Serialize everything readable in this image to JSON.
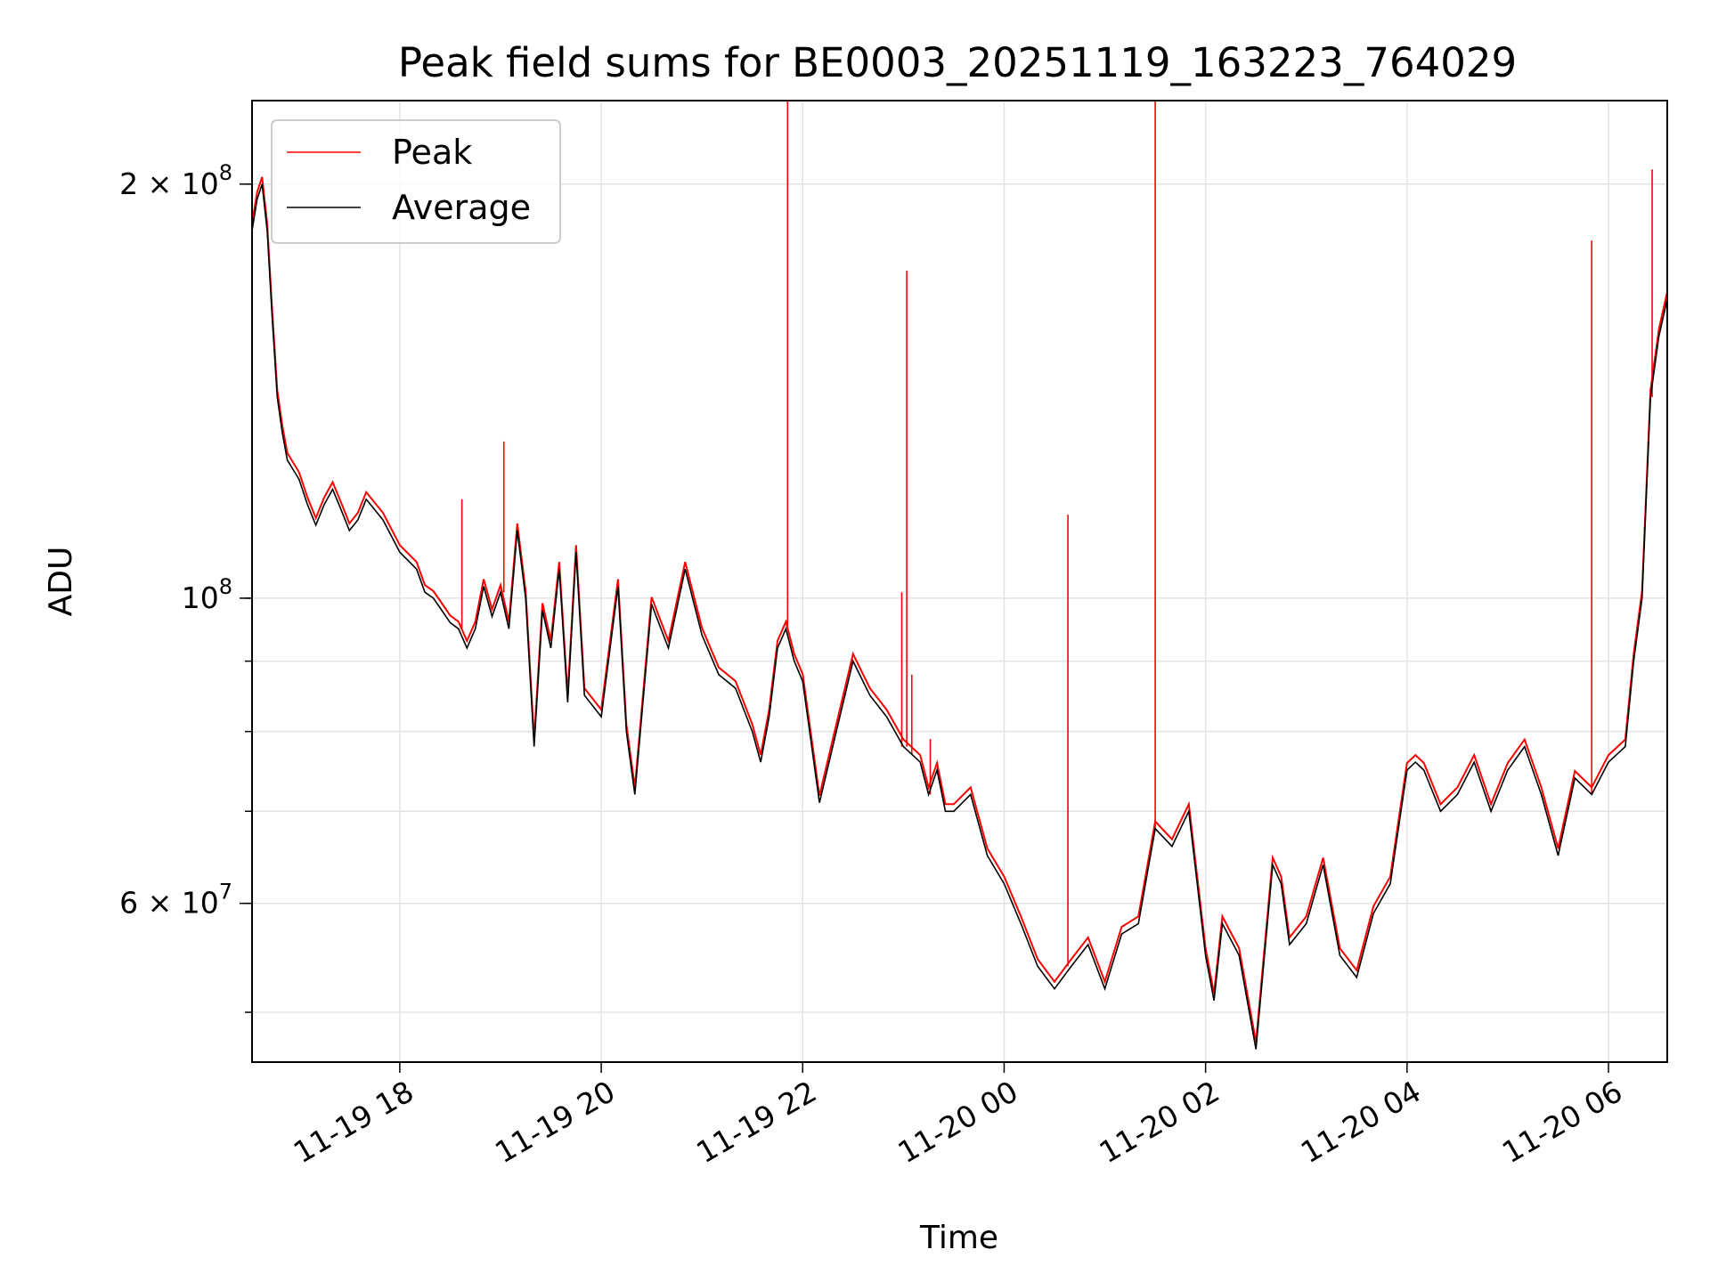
{
  "chart_data": {
    "type": "line",
    "title": "Peak field sums for BE0003_20251119_163223_764029",
    "xlabel": "Time",
    "ylabel": "ADU",
    "yscale": "log",
    "ylim": [
      46000000,
      230000000
    ],
    "xlim": [
      "2025-11-19 16:32",
      "2025-11-20 06:35"
    ],
    "grid": true,
    "legend": "top-left",
    "x_ticks": [
      "11-19 18",
      "11-19 20",
      "11-19 22",
      "11-20 00",
      "11-20 02",
      "11-20 04",
      "11-20 06"
    ],
    "y_ticks": [
      {
        "value": 60000000,
        "label": "6 × 10^7",
        "mantissa": "6",
        "exp": "7"
      },
      {
        "value": 100000000,
        "label": "10^8",
        "mantissa": "",
        "exp": "8"
      },
      {
        "value": 200000000,
        "label": "2 × 10^8",
        "mantissa": "2",
        "exp": "8"
      }
    ],
    "series": [
      {
        "name": "Average",
        "color": "#000000",
        "x": [
          "2025-11-19 16:32",
          "2025-11-19 16:35",
          "2025-11-19 16:38",
          "2025-11-19 16:41",
          "2025-11-19 16:44",
          "2025-11-19 16:47",
          "2025-11-19 16:50",
          "2025-11-19 16:53",
          "2025-11-19 17:00",
          "2025-11-19 17:05",
          "2025-11-19 17:10",
          "2025-11-19 17:15",
          "2025-11-19 17:20",
          "2025-11-19 17:25",
          "2025-11-19 17:30",
          "2025-11-19 17:35",
          "2025-11-19 17:40",
          "2025-11-19 17:50",
          "2025-11-19 18:00",
          "2025-11-19 18:10",
          "2025-11-19 18:15",
          "2025-11-19 18:20",
          "2025-11-19 18:25",
          "2025-11-19 18:30",
          "2025-11-19 18:35",
          "2025-11-19 18:40",
          "2025-11-19 18:45",
          "2025-11-19 18:50",
          "2025-11-19 18:55",
          "2025-11-19 19:00",
          "2025-11-19 19:05",
          "2025-11-19 19:10",
          "2025-11-19 19:15",
          "2025-11-19 19:20",
          "2025-11-19 19:25",
          "2025-11-19 19:30",
          "2025-11-19 19:35",
          "2025-11-19 19:40",
          "2025-11-19 19:45",
          "2025-11-19 19:50",
          "2025-11-19 20:00",
          "2025-11-19 20:10",
          "2025-11-19 20:15",
          "2025-11-19 20:20",
          "2025-11-19 20:30",
          "2025-11-19 20:40",
          "2025-11-19 20:50",
          "2025-11-19 21:00",
          "2025-11-19 21:10",
          "2025-11-19 21:20",
          "2025-11-19 21:30",
          "2025-11-19 21:35",
          "2025-11-19 21:40",
          "2025-11-19 21:45",
          "2025-11-19 21:50",
          "2025-11-19 21:55",
          "2025-11-19 22:00",
          "2025-11-19 22:10",
          "2025-11-19 22:20",
          "2025-11-19 22:30",
          "2025-11-19 22:40",
          "2025-11-19 22:50",
          "2025-11-19 23:00",
          "2025-11-19 23:05",
          "2025-11-19 23:10",
          "2025-11-19 23:15",
          "2025-11-19 23:20",
          "2025-11-19 23:25",
          "2025-11-19 23:30",
          "2025-11-19 23:40",
          "2025-11-19 23:50",
          "2025-11-20 00:00",
          "2025-11-20 00:10",
          "2025-11-20 00:20",
          "2025-11-20 00:30",
          "2025-11-20 00:40",
          "2025-11-20 00:50",
          "2025-11-20 01:00",
          "2025-11-20 01:10",
          "2025-11-20 01:20",
          "2025-11-20 01:30",
          "2025-11-20 01:40",
          "2025-11-20 01:50",
          "2025-11-20 02:00",
          "2025-11-20 02:05",
          "2025-11-20 02:10",
          "2025-11-20 02:20",
          "2025-11-20 02:30",
          "2025-11-20 02:40",
          "2025-11-20 02:45",
          "2025-11-20 02:50",
          "2025-11-20 03:00",
          "2025-11-20 03:10",
          "2025-11-20 03:20",
          "2025-11-20 03:30",
          "2025-11-20 03:40",
          "2025-11-20 03:50",
          "2025-11-20 04:00",
          "2025-11-20 04:05",
          "2025-11-20 04:10",
          "2025-11-20 04:20",
          "2025-11-20 04:30",
          "2025-11-20 04:40",
          "2025-11-20 04:50",
          "2025-11-20 05:00",
          "2025-11-20 05:10",
          "2025-11-20 05:20",
          "2025-11-20 05:30",
          "2025-11-20 05:40",
          "2025-11-20 05:50",
          "2025-11-20 06:00",
          "2025-11-20 06:10",
          "2025-11-20 06:15",
          "2025-11-20 06:20",
          "2025-11-20 06:25",
          "2025-11-20 06:30",
          "2025-11-20 06:35"
        ],
        "values": [
          185000000,
          195000000,
          200000000,
          185000000,
          160000000,
          140000000,
          132000000,
          126000000,
          122000000,
          117000000,
          113000000,
          117000000,
          120000000,
          116000000,
          112000000,
          114000000,
          118000000,
          114000000,
          108000000,
          105000000,
          101000000,
          100000000,
          98000000,
          96000000,
          95000000,
          92000000,
          95000000,
          102000000,
          97000000,
          101000000,
          95000000,
          112000000,
          100000000,
          78000000,
          98000000,
          92000000,
          105000000,
          84000000,
          108000000,
          85000000,
          82000000,
          102000000,
          80000000,
          72000000,
          99000000,
          92000000,
          105000000,
          94000000,
          88000000,
          86000000,
          80000000,
          76000000,
          82000000,
          92000000,
          95000000,
          90000000,
          87000000,
          71000000,
          80000000,
          90000000,
          85000000,
          82000000,
          78000000,
          77000000,
          76000000,
          72000000,
          75000000,
          70000000,
          70000000,
          72000000,
          65000000,
          62000000,
          58000000,
          54000000,
          52000000,
          54000000,
          56000000,
          52000000,
          57000000,
          58000000,
          68000000,
          66000000,
          70000000,
          55000000,
          51000000,
          58000000,
          55000000,
          47000000,
          64000000,
          62000000,
          56000000,
          58000000,
          64000000,
          55000000,
          53000000,
          59000000,
          62000000,
          75000000,
          76000000,
          75000000,
          70000000,
          72000000,
          76000000,
          70000000,
          75000000,
          78000000,
          72000000,
          65000000,
          74000000,
          72000000,
          76000000,
          78000000,
          90000000,
          100000000,
          140000000,
          155000000,
          165000000
        ]
      },
      {
        "name": "Peak",
        "color": "#ff0000",
        "spikes": [
          {
            "x": "2025-11-19 18:37",
            "value": 118000000
          },
          {
            "x": "2025-11-19 19:02",
            "value": 130000000
          },
          {
            "x": "2025-11-19 21:51",
            "value": 230000000
          },
          {
            "x": "2025-11-19 22:59",
            "value": 101000000
          },
          {
            "x": "2025-11-19 23:02",
            "value": 173000000
          },
          {
            "x": "2025-11-19 23:05",
            "value": 88000000
          },
          {
            "x": "2025-11-19 23:16",
            "value": 79000000
          },
          {
            "x": "2025-11-20 00:38",
            "value": 115000000
          },
          {
            "x": "2025-11-20 01:30",
            "value": 230000000
          },
          {
            "x": "2025-11-20 05:50",
            "value": 182000000
          },
          {
            "x": "2025-11-20 06:26",
            "value": 205000000
          }
        ]
      }
    ]
  }
}
